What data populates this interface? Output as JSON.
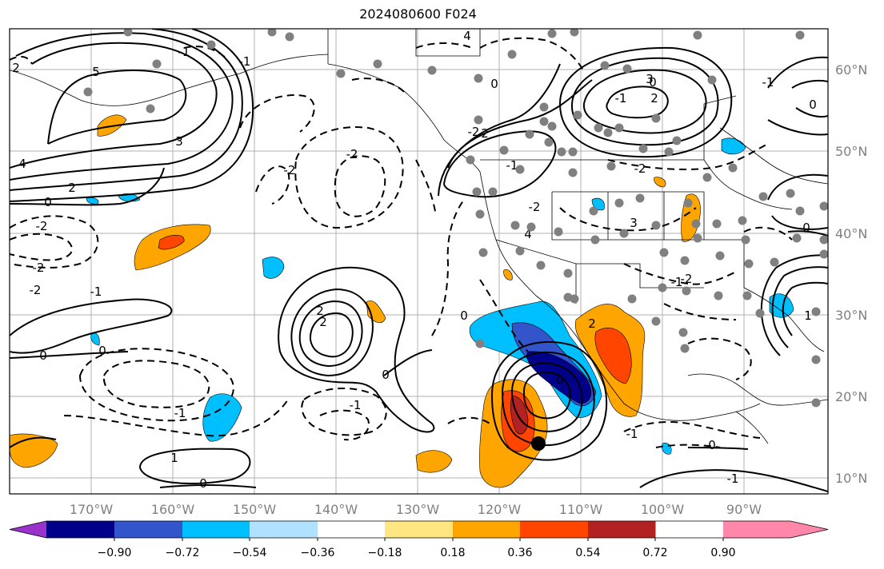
{
  "title": "2024080600 F024",
  "map": {
    "lon_labels": [
      "170°W",
      "160°W",
      "150°W",
      "140°W",
      "130°W",
      "120°W",
      "110°W",
      "100°W",
      "90°W"
    ],
    "lat_labels": [
      "60°N",
      "50°N",
      "40°N",
      "30°N",
      "20°N",
      "10°N"
    ],
    "contour_labels": [
      "4",
      "3",
      "5",
      "4",
      "-2",
      "-2",
      "3",
      "0",
      "2",
      "-1",
      "2",
      "2",
      "0",
      "-2",
      "-1",
      "0",
      "-2",
      "-1",
      "0",
      "-2",
      "0",
      "-1",
      "2",
      "2",
      "0",
      "3",
      "4",
      "2",
      "-1",
      "-2",
      "0",
      "1",
      "-1",
      "0",
      "-2",
      "0",
      "-1",
      "-1",
      "-2",
      "-2",
      "-1",
      "0",
      "1",
      "2",
      "-1",
      "0",
      "-1",
      "0"
    ]
  },
  "colorbar": {
    "ticks": [
      "−0.90",
      "−0.72",
      "−0.54",
      "−0.36",
      "−0.18",
      "0.18",
      "0.36",
      "0.54",
      "0.72",
      "0.90"
    ],
    "colors": [
      "#9933cc",
      "#00008b",
      "#3355cc",
      "#00bfff",
      "#b0e2ff",
      "#ffffff",
      "#ffe680",
      "#ffa500",
      "#ff4500",
      "#b22222",
      "#ff88aa"
    ]
  },
  "fill_colors": {
    "orange": "#ffa500",
    "red_orange": "#ff4500",
    "dark_red": "#b22222",
    "sky_blue": "#00bfff",
    "medium_blue": "#3355cc",
    "navy": "#00008b"
  }
}
